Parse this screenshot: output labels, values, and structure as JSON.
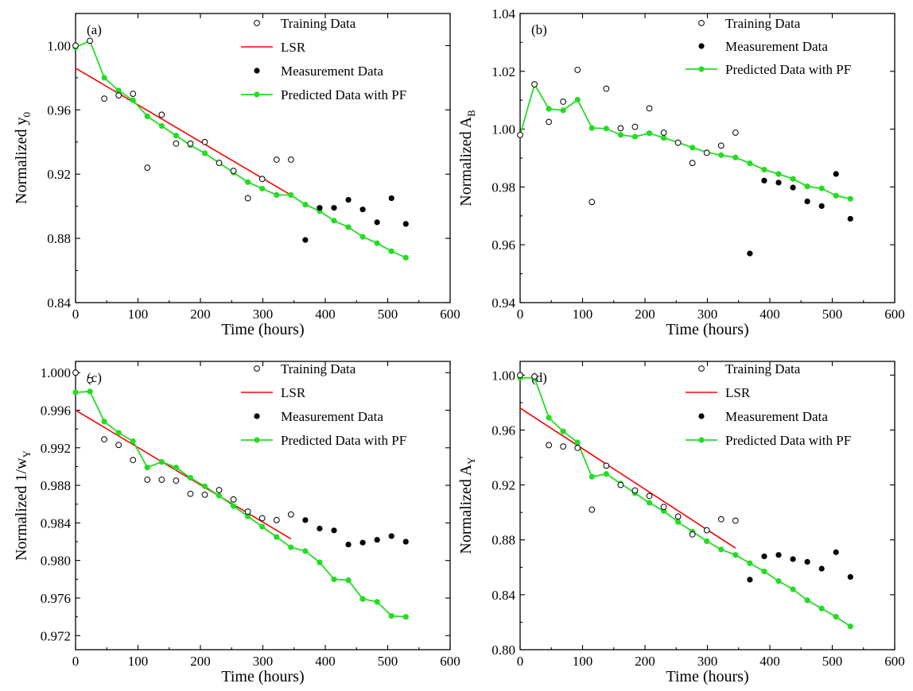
{
  "colors": {
    "lsr": "#ff0000",
    "pf": "#22dd22",
    "marker": "#000000",
    "axis": "#000000"
  },
  "legend_labels": {
    "training": "Training Data",
    "lsr": "LSR",
    "measurement": "Measurement Data",
    "pf": "Predicted Data with PF"
  },
  "chart_data": [
    {
      "type": "scatter",
      "tag": "(a)",
      "xlabel": "Time (hours)",
      "ylabel": "Normalized y0",
      "ylabel_main": "Normalized y",
      "ylabel_sub": "0",
      "xlim": [
        0,
        600
      ],
      "ylim": [
        0.84,
        1.02
      ],
      "xticks": [
        0,
        100,
        200,
        300,
        400,
        500,
        600
      ],
      "yticks": [
        0.84,
        0.88,
        0.92,
        0.96,
        1.0
      ],
      "ytick_labels": [
        "0.84",
        "0.88",
        "0.92",
        "0.96",
        "1.00"
      ],
      "legend_has_lsr": true,
      "training": [
        [
          0,
          1.0
        ],
        [
          23,
          1.003
        ],
        [
          46,
          0.967
        ],
        [
          69,
          0.969
        ],
        [
          92,
          0.97
        ],
        [
          115,
          0.924
        ],
        [
          138,
          0.957
        ],
        [
          161,
          0.939
        ],
        [
          184,
          0.939
        ],
        [
          207,
          0.94
        ],
        [
          230,
          0.927
        ],
        [
          253,
          0.922
        ],
        [
          276,
          0.905
        ],
        [
          299,
          0.917
        ],
        [
          322,
          0.929
        ],
        [
          345,
          0.929
        ]
      ],
      "lsr": [
        [
          0,
          0.986
        ],
        [
          345,
          0.907
        ]
      ],
      "measurement": [
        [
          368,
          0.879
        ],
        [
          391,
          0.899
        ],
        [
          414,
          0.899
        ],
        [
          437,
          0.904
        ],
        [
          460,
          0.898
        ],
        [
          483,
          0.89
        ],
        [
          506,
          0.905
        ],
        [
          529,
          0.889
        ]
      ],
      "pf": [
        [
          0,
          0.999
        ],
        [
          23,
          1.003
        ],
        [
          46,
          0.98
        ],
        [
          69,
          0.972
        ],
        [
          92,
          0.966
        ],
        [
          115,
          0.956
        ],
        [
          138,
          0.95
        ],
        [
          161,
          0.944
        ],
        [
          184,
          0.938
        ],
        [
          207,
          0.933
        ],
        [
          230,
          0.927
        ],
        [
          253,
          0.921
        ],
        [
          276,
          0.915
        ],
        [
          299,
          0.911
        ],
        [
          322,
          0.907
        ],
        [
          345,
          0.907
        ],
        [
          368,
          0.901
        ],
        [
          391,
          0.897
        ],
        [
          414,
          0.891
        ],
        [
          437,
          0.887
        ],
        [
          460,
          0.881
        ],
        [
          483,
          0.877
        ],
        [
          506,
          0.872
        ],
        [
          529,
          0.868
        ]
      ]
    },
    {
      "type": "scatter",
      "tag": "(b)",
      "xlabel": "Time (hours)",
      "ylabel": "Normalized AB",
      "ylabel_main": "Normalized A",
      "ylabel_sub": "B",
      "xlim": [
        0,
        600
      ],
      "ylim": [
        0.94,
        1.04
      ],
      "xticks": [
        0,
        100,
        200,
        300,
        400,
        500,
        600
      ],
      "yticks": [
        0.94,
        0.96,
        0.98,
        1.0,
        1.02,
        1.04
      ],
      "ytick_labels": [
        "0.94",
        "0.96",
        "0.98",
        "1.00",
        "1.02",
        "1.04"
      ],
      "legend_has_lsr": false,
      "training": [
        [
          0,
          0.998
        ],
        [
          23,
          1.0155
        ],
        [
          46,
          1.0025
        ],
        [
          69,
          1.0095
        ],
        [
          92,
          1.0205
        ],
        [
          115,
          0.9748
        ],
        [
          138,
          1.014
        ],
        [
          161,
          1.0003
        ],
        [
          184,
          1.0008
        ],
        [
          207,
          1.0072
        ],
        [
          230,
          0.9988
        ],
        [
          253,
          0.9953
        ],
        [
          276,
          0.9883
        ],
        [
          299,
          0.9918
        ],
        [
          322,
          0.9943
        ],
        [
          345,
          0.9988
        ]
      ],
      "lsr": [],
      "measurement": [
        [
          368,
          0.957
        ],
        [
          391,
          0.9822
        ],
        [
          414,
          0.9815
        ],
        [
          437,
          0.9798
        ],
        [
          460,
          0.975
        ],
        [
          483,
          0.9734
        ],
        [
          506,
          0.9845
        ],
        [
          529,
          0.969
        ]
      ],
      "pf": [
        [
          0,
          0.998
        ],
        [
          23,
          1.0155
        ],
        [
          46,
          1.007
        ],
        [
          69,
          1.0065
        ],
        [
          92,
          1.0102
        ],
        [
          115,
          1.0004
        ],
        [
          138,
          1.0002
        ],
        [
          161,
          0.998
        ],
        [
          184,
          0.9974
        ],
        [
          207,
          0.9986
        ],
        [
          230,
          0.997
        ],
        [
          253,
          0.9954
        ],
        [
          276,
          0.9936
        ],
        [
          299,
          0.992
        ],
        [
          322,
          0.991
        ],
        [
          345,
          0.9902
        ],
        [
          368,
          0.9882
        ],
        [
          391,
          0.986
        ],
        [
          414,
          0.9845
        ],
        [
          437,
          0.9828
        ],
        [
          460,
          0.9802
        ],
        [
          483,
          0.9795
        ],
        [
          506,
          0.977
        ],
        [
          529,
          0.9759
        ]
      ]
    },
    {
      "type": "scatter",
      "tag": "(c)",
      "xlabel": "Time (hours)",
      "ylabel": "Normalized 1/wY",
      "ylabel_main": "Normalized 1/w",
      "ylabel_sub": "Y",
      "xlim": [
        0,
        600
      ],
      "ylim": [
        0.9705,
        1.0012
      ],
      "xticks": [
        0,
        100,
        200,
        300,
        400,
        500,
        600
      ],
      "yticks": [
        0.972,
        0.976,
        0.98,
        0.984,
        0.988,
        0.992,
        0.996,
        1.0
      ],
      "ytick_labels": [
        "0.972",
        "0.976",
        "0.980",
        "0.984",
        "0.988",
        "0.992",
        "0.996",
        "1.000"
      ],
      "legend_has_lsr": true,
      "training": [
        [
          0,
          1.0
        ],
        [
          23,
          0.9992
        ],
        [
          46,
          0.9929
        ],
        [
          69,
          0.9923
        ],
        [
          92,
          0.9907
        ],
        [
          115,
          0.9886
        ],
        [
          138,
          0.9886
        ],
        [
          161,
          0.9885
        ],
        [
          184,
          0.9871
        ],
        [
          207,
          0.987
        ],
        [
          230,
          0.9875
        ],
        [
          253,
          0.9865
        ],
        [
          276,
          0.9852
        ],
        [
          299,
          0.9845
        ],
        [
          322,
          0.9843
        ],
        [
          345,
          0.9849
        ]
      ],
      "lsr": [
        [
          0,
          0.996
        ],
        [
          345,
          0.9823
        ]
      ],
      "measurement": [
        [
          368,
          0.9843
        ],
        [
          391,
          0.9834
        ],
        [
          414,
          0.9832
        ],
        [
          437,
          0.9817
        ],
        [
          460,
          0.9819
        ],
        [
          483,
          0.9822
        ],
        [
          506,
          0.9826
        ],
        [
          529,
          0.982
        ]
      ],
      "pf": [
        [
          0,
          0.9979
        ],
        [
          23,
          0.998
        ],
        [
          46,
          0.9948
        ],
        [
          69,
          0.9936
        ],
        [
          92,
          0.9927
        ],
        [
          115,
          0.9899
        ],
        [
          138,
          0.9905
        ],
        [
          161,
          0.9899
        ],
        [
          184,
          0.9888
        ],
        [
          207,
          0.9879
        ],
        [
          230,
          0.9869
        ],
        [
          253,
          0.9858
        ],
        [
          276,
          0.9847
        ],
        [
          299,
          0.9836
        ],
        [
          322,
          0.9825
        ],
        [
          345,
          0.9814
        ],
        [
          368,
          0.981
        ],
        [
          391,
          0.9798
        ],
        [
          414,
          0.978
        ],
        [
          437,
          0.9779
        ],
        [
          460,
          0.9759
        ],
        [
          483,
          0.9756
        ],
        [
          506,
          0.9741
        ],
        [
          529,
          0.974
        ]
      ]
    },
    {
      "type": "scatter",
      "tag": "(d)",
      "xlabel": "Time (hours)",
      "ylabel": "Normalized AY",
      "ylabel_main": "Normalized A",
      "ylabel_sub": "Y",
      "xlim": [
        0,
        600
      ],
      "ylim": [
        0.8,
        1.01
      ],
      "xticks": [
        0,
        100,
        200,
        300,
        400,
        500,
        600
      ],
      "yticks": [
        0.8,
        0.84,
        0.88,
        0.92,
        0.96,
        1.0
      ],
      "ytick_labels": [
        "0.80",
        "0.84",
        "0.88",
        "0.92",
        "0.96",
        "1.00"
      ],
      "legend_has_lsr": true,
      "training": [
        [
          0,
          1.0
        ],
        [
          23,
          0.999
        ],
        [
          46,
          0.949
        ],
        [
          69,
          0.948
        ],
        [
          92,
          0.947
        ],
        [
          115,
          0.902
        ],
        [
          138,
          0.934
        ],
        [
          161,
          0.92
        ],
        [
          184,
          0.916
        ],
        [
          207,
          0.912
        ],
        [
          230,
          0.904
        ],
        [
          253,
          0.897
        ],
        [
          276,
          0.884
        ],
        [
          299,
          0.887
        ],
        [
          322,
          0.895
        ],
        [
          345,
          0.894
        ]
      ],
      "lsr": [
        [
          0,
          0.976
        ],
        [
          345,
          0.874
        ]
      ],
      "measurement": [
        [
          368,
          0.851
        ],
        [
          391,
          0.868
        ],
        [
          414,
          0.869
        ],
        [
          437,
          0.866
        ],
        [
          460,
          0.864
        ],
        [
          483,
          0.859
        ],
        [
          506,
          0.871
        ],
        [
          529,
          0.853
        ]
      ],
      "pf": [
        [
          0,
          0.998
        ],
        [
          23,
          0.998
        ],
        [
          46,
          0.969
        ],
        [
          69,
          0.959
        ],
        [
          92,
          0.951
        ],
        [
          115,
          0.926
        ],
        [
          138,
          0.928
        ],
        [
          161,
          0.921
        ],
        [
          184,
          0.914
        ],
        [
          207,
          0.907
        ],
        [
          230,
          0.901
        ],
        [
          253,
          0.893
        ],
        [
          276,
          0.886
        ],
        [
          299,
          0.879
        ],
        [
          322,
          0.873
        ],
        [
          345,
          0.869
        ],
        [
          368,
          0.863
        ],
        [
          391,
          0.857
        ],
        [
          414,
          0.85
        ],
        [
          437,
          0.844
        ],
        [
          460,
          0.836
        ],
        [
          483,
          0.83
        ],
        [
          506,
          0.824
        ],
        [
          529,
          0.817
        ]
      ]
    }
  ]
}
